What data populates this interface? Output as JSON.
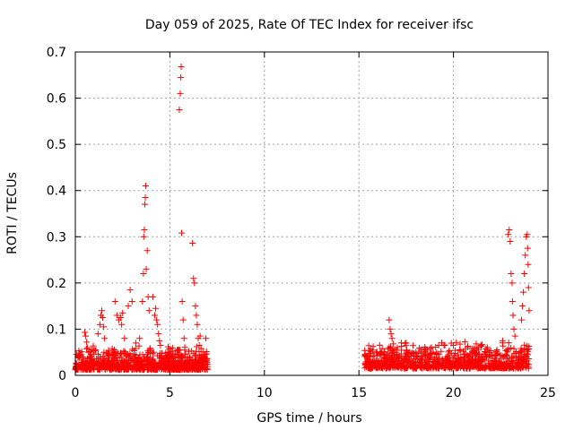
{
  "chart_data": {
    "type": "scatter",
    "title": "Day 059 of 2025, Rate Of TEC Index for receiver ifsc",
    "xlabel": "GPS time / hours",
    "ylabel": "ROTI / TECUs",
    "xlim": [
      0,
      25
    ],
    "ylim": [
      0,
      0.7
    ],
    "x_ticks": [
      "0",
      "5",
      "10",
      "15",
      "20",
      "25"
    ],
    "y_ticks": [
      "0",
      "0.1",
      "0.2",
      "0.3",
      "0.4",
      "0.5",
      "0.6",
      "0.7"
    ],
    "grid": true,
    "legend": "none",
    "marker": "plus",
    "color": "#ff0000",
    "series": [
      {
        "points": [
          [
            0.5,
            0.093
          ],
          [
            0.55,
            0.085
          ],
          [
            0.6,
            0.072
          ],
          [
            0.65,
            0.06
          ],
          [
            0.7,
            0.05
          ],
          [
            1.2,
            0.09
          ],
          [
            1.3,
            0.11
          ],
          [
            1.35,
            0.13
          ],
          [
            1.4,
            0.14
          ],
          [
            1.45,
            0.125
          ],
          [
            1.5,
            0.105
          ],
          [
            1.55,
            0.08
          ],
          [
            2.1,
            0.16
          ],
          [
            2.2,
            0.13
          ],
          [
            2.3,
            0.12
          ],
          [
            2.4,
            0.125
          ],
          [
            2.45,
            0.11
          ],
          [
            2.5,
            0.135
          ],
          [
            2.6,
            0.08
          ],
          [
            2.8,
            0.15
          ],
          [
            2.9,
            0.185
          ],
          [
            3.0,
            0.16
          ],
          [
            3.2,
            0.07
          ],
          [
            3.4,
            0.08
          ],
          [
            3.55,
            0.16
          ],
          [
            3.6,
            0.22
          ],
          [
            3.62,
            0.3
          ],
          [
            3.65,
            0.315
          ],
          [
            3.68,
            0.37
          ],
          [
            3.7,
            0.385
          ],
          [
            3.72,
            0.41
          ],
          [
            3.75,
            0.23
          ],
          [
            3.8,
            0.27
          ],
          [
            3.85,
            0.17
          ],
          [
            3.9,
            0.14
          ],
          [
            4.1,
            0.17
          ],
          [
            4.2,
            0.13
          ],
          [
            4.25,
            0.145
          ],
          [
            4.3,
            0.12
          ],
          [
            4.35,
            0.11
          ],
          [
            4.4,
            0.09
          ],
          [
            4.45,
            0.075
          ],
          [
            4.5,
            0.065
          ],
          [
            5.5,
            0.575
          ],
          [
            5.55,
            0.61
          ],
          [
            5.58,
            0.645
          ],
          [
            5.6,
            0.668
          ],
          [
            5.62,
            0.308
          ],
          [
            5.65,
            0.16
          ],
          [
            5.7,
            0.12
          ],
          [
            5.75,
            0.08
          ],
          [
            6.2,
            0.286
          ],
          [
            6.25,
            0.21
          ],
          [
            6.3,
            0.2
          ],
          [
            6.35,
            0.15
          ],
          [
            6.4,
            0.13
          ],
          [
            6.45,
            0.11
          ],
          [
            6.5,
            0.08
          ],
          [
            6.55,
            0.065
          ],
          [
            6.6,
            0.085
          ],
          [
            6.9,
            0.08
          ],
          [
            16.6,
            0.12
          ],
          [
            16.65,
            0.1
          ],
          [
            16.7,
            0.09
          ],
          [
            16.75,
            0.08
          ],
          [
            16.8,
            0.05
          ],
          [
            17.5,
            0.04
          ],
          [
            19.5,
            0.065
          ],
          [
            20.0,
            0.065
          ],
          [
            21.3,
            0.06
          ],
          [
            22.3,
            0.055
          ],
          [
            22.6,
            0.075
          ],
          [
            22.9,
            0.305
          ],
          [
            22.95,
            0.315
          ],
          [
            23.0,
            0.29
          ],
          [
            23.05,
            0.22
          ],
          [
            23.1,
            0.2
          ],
          [
            23.12,
            0.16
          ],
          [
            23.15,
            0.13
          ],
          [
            23.2,
            0.1
          ],
          [
            23.25,
            0.085
          ],
          [
            23.6,
            0.12
          ],
          [
            23.65,
            0.15
          ],
          [
            23.7,
            0.18
          ],
          [
            23.75,
            0.22
          ],
          [
            23.8,
            0.26
          ],
          [
            23.85,
            0.3
          ],
          [
            23.9,
            0.305
          ],
          [
            23.92,
            0.275
          ],
          [
            23.95,
            0.24
          ],
          [
            23.97,
            0.19
          ],
          [
            24.0,
            0.14
          ]
        ]
      }
    ]
  }
}
